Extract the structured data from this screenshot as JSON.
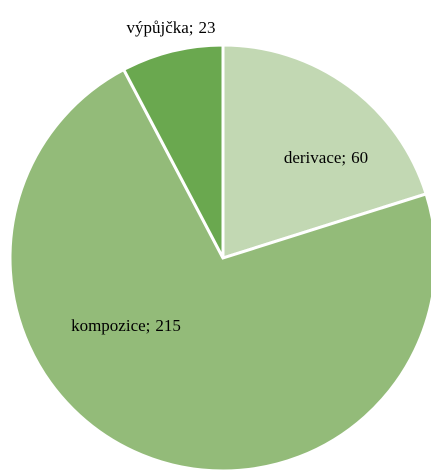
{
  "chart_data": {
    "type": "pie",
    "categories": [
      "derivace",
      "kompozice",
      "výpůjčka"
    ],
    "values": [
      60,
      215,
      23
    ],
    "colors": [
      "#c2d8b3",
      "#93bb79",
      "#6aa84f"
    ],
    "label_separator": ";"
  }
}
